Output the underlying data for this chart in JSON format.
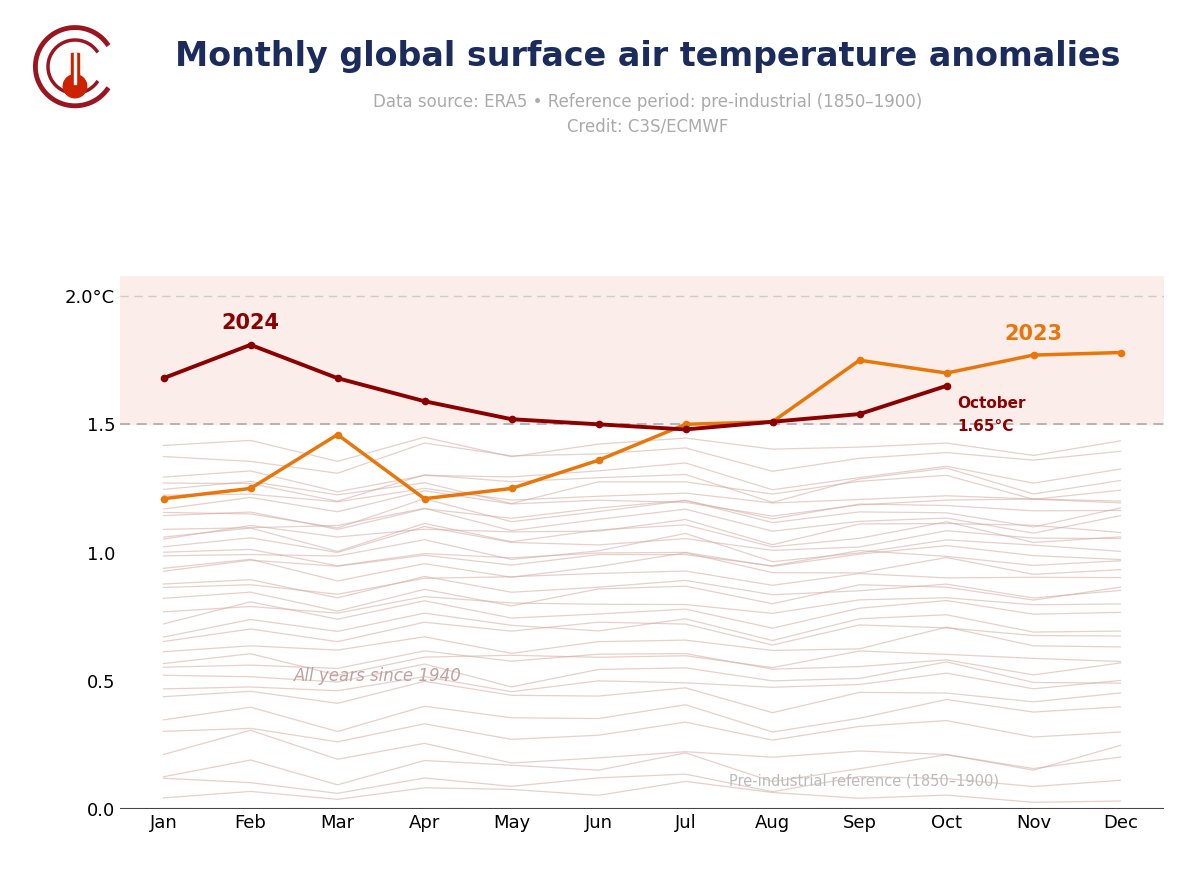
{
  "title": "Monthly global surface air temperature anomalies",
  "subtitle1": "Data source: ERA5 • Reference period: pre-industrial (1850–1900)",
  "subtitle2": "Credit: C3S/ECMWF",
  "months": [
    "Jan",
    "Feb",
    "Mar",
    "Apr",
    "May",
    "Jun",
    "Jul",
    "Aug",
    "Sep",
    "Oct",
    "Nov",
    "Dec"
  ],
  "data_2024": [
    1.68,
    1.81,
    1.68,
    1.59,
    1.52,
    1.5,
    1.48,
    1.51,
    1.54,
    1.65,
    null,
    null
  ],
  "data_2023": [
    1.21,
    1.25,
    1.46,
    1.21,
    1.25,
    1.36,
    1.5,
    1.51,
    1.75,
    1.7,
    1.77,
    1.78
  ],
  "color_2024": "#8B0000",
  "color_2023": "#E8760A",
  "background_fill_color": "#FAEDEA",
  "threshold_15": 1.5,
  "threshold_20": 2.0,
  "ylim_min": 0.0,
  "ylim_max": 2.08,
  "other_years_color": "#D4A8A0",
  "title_color": "#1A2B5C",
  "subtitle_color": "#AAAAAA",
  "annotation_oct_label_line1": "October",
  "annotation_oct_label_line2": "1.65°C",
  "annotation_2024_label": "2024",
  "annotation_2023_label": "2023",
  "label_all_years": "All years since 1940",
  "label_preindustrial": "Pre-industrial reference (1850–1900)",
  "other_years_seeds": [
    [
      0.22,
      0.28,
      0.18,
      0.25,
      0.2,
      0.22,
      0.25,
      0.18,
      0.22,
      0.2,
      0.18,
      0.22
    ],
    [
      0.1,
      0.12,
      0.08,
      0.14,
      0.1,
      0.12,
      0.14,
      0.08,
      0.12,
      0.14,
      0.1,
      0.12
    ],
    [
      0.35,
      0.38,
      0.32,
      0.4,
      0.35,
      0.38,
      0.4,
      0.32,
      0.38,
      0.4,
      0.35,
      0.38
    ],
    [
      0.48,
      0.5,
      0.45,
      0.52,
      0.48,
      0.5,
      0.52,
      0.45,
      0.5,
      0.52,
      0.48,
      0.5
    ],
    [
      0.55,
      0.58,
      0.52,
      0.6,
      0.55,
      0.58,
      0.6,
      0.52,
      0.58,
      0.6,
      0.55,
      0.58
    ],
    [
      0.62,
      0.65,
      0.6,
      0.68,
      0.62,
      0.65,
      0.68,
      0.6,
      0.65,
      0.68,
      0.62,
      0.65
    ],
    [
      0.7,
      0.72,
      0.68,
      0.75,
      0.7,
      0.72,
      0.75,
      0.68,
      0.72,
      0.75,
      0.7,
      0.72
    ],
    [
      0.78,
      0.8,
      0.75,
      0.82,
      0.78,
      0.8,
      0.82,
      0.75,
      0.8,
      0.82,
      0.78,
      0.8
    ],
    [
      0.82,
      0.85,
      0.8,
      0.88,
      0.82,
      0.85,
      0.88,
      0.8,
      0.85,
      0.88,
      0.82,
      0.85
    ],
    [
      0.88,
      0.9,
      0.85,
      0.92,
      0.88,
      0.9,
      0.92,
      0.85,
      0.9,
      0.92,
      0.88,
      0.9
    ],
    [
      0.92,
      0.95,
      0.9,
      0.98,
      0.92,
      0.95,
      0.98,
      0.9,
      0.95,
      0.98,
      0.92,
      0.95
    ],
    [
      0.95,
      0.98,
      0.92,
      1.0,
      0.95,
      0.98,
      1.0,
      0.92,
      0.98,
      1.0,
      0.95,
      0.98
    ],
    [
      1.0,
      1.02,
      0.98,
      1.05,
      1.0,
      1.02,
      1.05,
      0.98,
      1.02,
      1.05,
      1.0,
      1.02
    ],
    [
      1.05,
      1.08,
      1.02,
      1.1,
      1.05,
      1.08,
      1.1,
      1.02,
      1.08,
      1.1,
      1.05,
      1.08
    ],
    [
      1.08,
      1.1,
      1.05,
      1.12,
      1.08,
      1.1,
      1.12,
      1.05,
      1.1,
      1.12,
      1.08,
      1.1
    ],
    [
      1.1,
      1.12,
      1.08,
      1.15,
      1.1,
      1.12,
      1.15,
      1.08,
      1.12,
      1.15,
      1.1,
      1.12
    ],
    [
      1.12,
      1.15,
      1.1,
      1.18,
      1.12,
      1.15,
      1.18,
      1.1,
      1.15,
      1.18,
      1.12,
      1.15
    ],
    [
      1.15,
      1.18,
      1.12,
      1.2,
      1.15,
      1.18,
      1.2,
      1.12,
      1.18,
      1.2,
      1.15,
      1.18
    ],
    [
      1.18,
      1.2,
      1.15,
      1.22,
      1.18,
      1.2,
      1.22,
      1.15,
      1.2,
      1.22,
      1.18,
      1.2
    ],
    [
      1.2,
      1.22,
      1.18,
      1.25,
      1.2,
      1.22,
      1.25,
      1.18,
      1.22,
      1.25,
      1.2,
      1.22
    ],
    [
      1.22,
      1.25,
      1.2,
      1.28,
      1.22,
      1.25,
      1.28,
      1.2,
      1.25,
      1.28,
      1.22,
      1.25
    ],
    [
      1.25,
      1.28,
      1.22,
      1.3,
      1.25,
      1.28,
      1.3,
      1.22,
      1.28,
      1.3,
      1.25,
      1.28
    ],
    [
      0.28,
      0.3,
      0.25,
      0.32,
      0.28,
      0.3,
      0.32,
      0.25,
      0.3,
      0.32,
      0.28,
      0.3
    ],
    [
      0.42,
      0.45,
      0.4,
      0.48,
      0.42,
      0.45,
      0.48,
      0.4,
      0.45,
      0.48,
      0.42,
      0.45
    ],
    [
      0.58,
      0.6,
      0.55,
      0.62,
      0.58,
      0.6,
      0.62,
      0.55,
      0.6,
      0.62,
      0.58,
      0.6
    ],
    [
      0.68,
      0.7,
      0.65,
      0.72,
      0.68,
      0.7,
      0.72,
      0.65,
      0.7,
      0.72,
      0.68,
      0.7
    ],
    [
      0.75,
      0.78,
      0.72,
      0.8,
      0.75,
      0.78,
      0.8,
      0.72,
      0.78,
      0.8,
      0.75,
      0.78
    ],
    [
      0.85,
      0.88,
      0.82,
      0.9,
      0.85,
      0.88,
      0.9,
      0.82,
      0.88,
      0.9,
      0.85,
      0.88
    ],
    [
      0.98,
      1.0,
      0.95,
      1.02,
      0.98,
      1.0,
      1.02,
      0.95,
      1.0,
      1.02,
      0.98,
      1.0
    ],
    [
      1.03,
      1.05,
      1.0,
      1.08,
      1.03,
      1.05,
      1.08,
      1.0,
      1.05,
      1.08,
      1.03,
      1.05
    ],
    [
      0.05,
      0.06,
      0.04,
      0.08,
      0.05,
      0.06,
      0.08,
      0.04,
      0.06,
      0.08,
      0.05,
      0.06
    ],
    [
      0.15,
      0.18,
      0.12,
      0.2,
      0.15,
      0.18,
      0.2,
      0.12,
      0.18,
      0.2,
      0.15,
      0.18
    ],
    [
      1.28,
      1.3,
      1.25,
      1.32,
      1.28,
      1.3,
      1.32,
      1.25,
      1.3,
      1.32,
      1.28,
      1.3
    ],
    [
      0.5,
      0.52,
      0.48,
      0.55,
      0.5,
      0.52,
      0.55,
      0.48,
      0.52,
      0.55,
      0.5,
      0.52
    ],
    [
      1.35,
      1.38,
      1.32,
      1.4,
      1.35,
      1.38,
      1.4,
      1.32,
      1.38,
      1.4,
      1.35,
      1.38
    ],
    [
      1.4,
      1.42,
      1.38,
      1.45,
      1.4,
      1.42,
      1.45,
      1.38,
      1.42,
      1.45,
      1.4,
      1.42
    ]
  ]
}
